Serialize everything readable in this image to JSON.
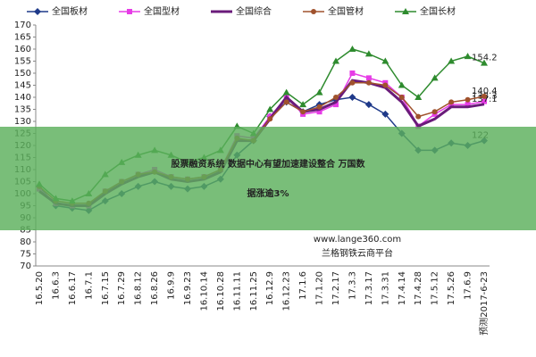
{
  "chart_data": {
    "type": "line",
    "legend": "top",
    "categories": [
      "16.5.20",
      "16.6.3",
      "16.6.17",
      "16.7.1",
      "16.7.15",
      "16.7.29",
      "16.8.12",
      "16.8.26",
      "16.9.9",
      "16.9.23",
      "16.10.14",
      "16.10.28",
      "16.11.11",
      "16.11.25",
      "16.12.9",
      "16.12.23",
      "17.1.6",
      "17.1.20",
      "17.2.17",
      "17.3.3",
      "17.3.17",
      "17.3.31",
      "17.4.14",
      "17.4.28",
      "17.5.12",
      "17.5.26",
      "17.6.9",
      "预测2017-6-23"
    ],
    "series": [
      {
        "name": "全国板材",
        "color": "#1f3a8a",
        "marker": "diamond",
        "values": [
          103,
          95,
          94,
          93,
          97,
          100,
          103,
          105,
          103,
          102,
          103,
          106,
          116,
          122,
          132,
          138,
          134,
          137,
          139,
          140,
          137,
          133,
          125,
          118,
          118,
          121,
          120,
          122
        ]
      },
      {
        "name": "全国型材",
        "color": "#e63ce6",
        "marker": "square",
        "values": [
          102,
          96,
          95,
          95,
          101,
          105,
          108,
          110,
          107,
          106,
          107,
          110,
          124,
          123,
          132,
          140,
          133,
          134,
          137,
          150,
          148,
          146,
          140,
          128,
          133,
          137,
          137,
          138.3
        ]
      },
      {
        "name": "全国综合",
        "color": "#6a1b7a",
        "marker": "none",
        "values": [
          101,
          96,
          95,
          95,
          100,
          104,
          107,
          109,
          106,
          105,
          106,
          109,
          122,
          122,
          131,
          140,
          134,
          135,
          138,
          147,
          146,
          144,
          138,
          128,
          131,
          136,
          136,
          137.1
        ]
      },
      {
        "name": "全国管材",
        "color": "#a0522d",
        "marker": "circle",
        "values": [
          103,
          97,
          96,
          96,
          101,
          105,
          108,
          109,
          107,
          106,
          107,
          110,
          123,
          122,
          131,
          138,
          134,
          136,
          140,
          146,
          146,
          145,
          140,
          132,
          134,
          138,
          139,
          140.4
        ]
      },
      {
        "name": "全国长材",
        "color": "#2e8b2e",
        "marker": "triangle",
        "values": [
          104,
          98,
          97,
          100,
          108,
          113,
          116,
          118,
          116,
          113,
          115,
          118,
          128,
          125,
          135,
          142,
          137,
          142,
          155,
          160,
          158,
          155,
          145,
          140,
          148,
          155,
          157,
          154.2
        ]
      }
    ],
    "ylim": [
      70,
      170
    ],
    "yticks": [
      70,
      75,
      80,
      85,
      90,
      95,
      100,
      105,
      110,
      115,
      120,
      125,
      130,
      135,
      140,
      145,
      150,
      155,
      160,
      165,
      170
    ],
    "grid": false
  },
  "overlay": {
    "banner_lines": [
      "股票融资系统 数据中心有望加速建设整合 万国数",
      "据涨逾3%"
    ],
    "watermark_url": "www.lange360.com",
    "watermark_name": "兰格钢铁云商平台"
  }
}
